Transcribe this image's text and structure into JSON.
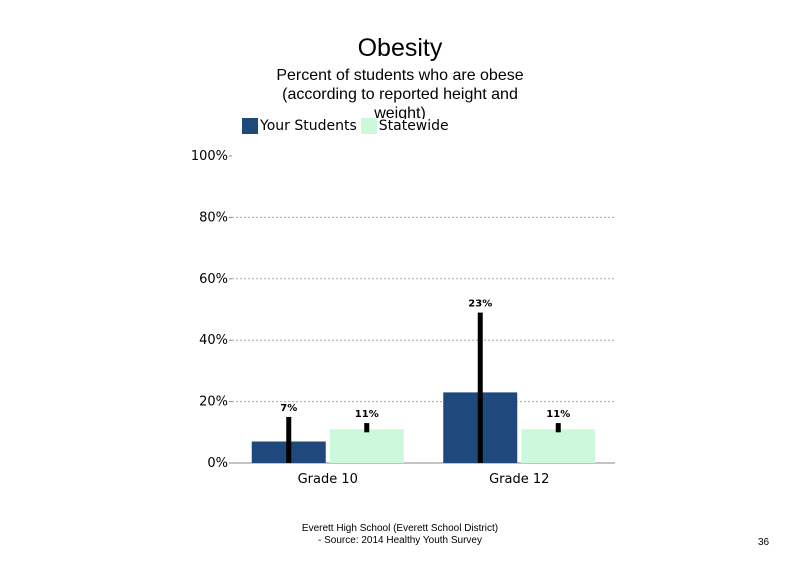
{
  "slide": {
    "title": "Obesity",
    "subtitle": "Percent of students who are obese (according to reported height and weight)",
    "footer_line1": "Everett High School (Everett School District)",
    "footer_line2": "- Source: 2014 Healthy Youth Survey",
    "page_number": "36"
  },
  "chart_data": {
    "type": "bar",
    "categories": [
      "Grade 10",
      "Grade 12"
    ],
    "series": [
      {
        "name": "Your Students",
        "color": "#1f497d",
        "values": [
          7,
          23
        ],
        "labels": [
          "7%",
          "23%"
        ],
        "error_low": [
          0,
          0
        ],
        "error_high": [
          15,
          49
        ]
      },
      {
        "name": "Statewide",
        "color": "#ccf8dc",
        "values": [
          11,
          11
        ],
        "labels": [
          "11%",
          "11%"
        ],
        "error_low": [
          10,
          10
        ],
        "error_high": [
          13,
          13
        ]
      }
    ],
    "ylim": [
      0,
      100
    ],
    "yticks": [
      0,
      20,
      40,
      60,
      80,
      100
    ],
    "ytick_labels": [
      "0%",
      "20%",
      "40%",
      "60%",
      "80%",
      "100%"
    ],
    "grid": true,
    "legend_position": "top-left"
  }
}
